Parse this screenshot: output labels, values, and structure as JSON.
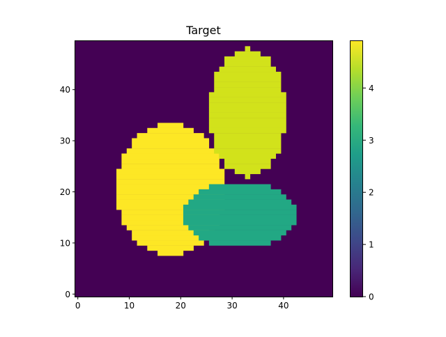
{
  "chart_data": {
    "type": "heatmap",
    "title": "Target",
    "xlabel": "",
    "ylabel": "",
    "grid_size": [
      50,
      50
    ],
    "origin": "lower",
    "xlim": [
      -0.5,
      49.5
    ],
    "ylim": [
      -0.5,
      49.5
    ],
    "x_ticks": [
      0,
      10,
      20,
      30,
      40
    ],
    "y_ticks": [
      0,
      10,
      20,
      30,
      40
    ],
    "background_value": 0,
    "colorbar": {
      "range": [
        0,
        4.9
      ],
      "ticks": [
        0,
        1,
        2,
        3,
        4
      ],
      "colormap": "viridis"
    },
    "regions": [
      {
        "shape": "ellipse",
        "value": 4.9,
        "color": "#fde725",
        "center": [
          18.0,
          20.5
        ],
        "half_width": 10.5,
        "half_height": 13.0
      },
      {
        "shape": "ellipse",
        "value": 4.4,
        "color": "#d2e21b",
        "center": [
          33.0,
          35.5
        ],
        "half_width": 7.5,
        "half_height": 12.5
      },
      {
        "shape": "ellipse",
        "value": 3.1,
        "color": "#22a884",
        "center": [
          31.5,
          15.5
        ],
        "half_width": 10.8,
        "half_height": 6.5
      }
    ],
    "colors": {
      "background": "#440154",
      "viridis_stops": [
        "#440154",
        "#482878",
        "#3e4989",
        "#31688e",
        "#26828e",
        "#1f9e89",
        "#35b779",
        "#6ece58",
        "#b5de2b",
        "#fde725"
      ]
    }
  }
}
